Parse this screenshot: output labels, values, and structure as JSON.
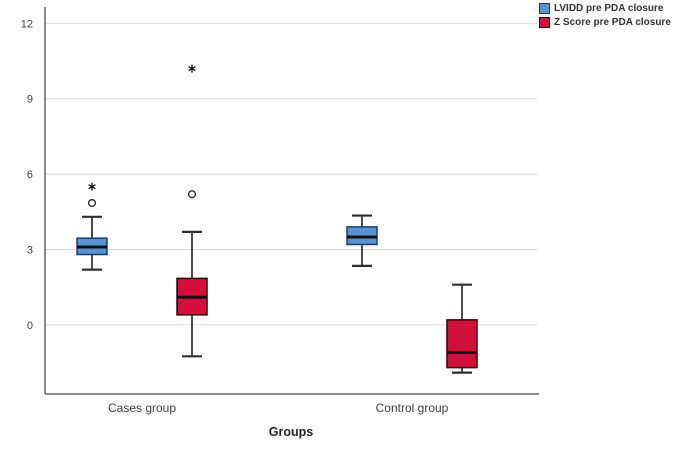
{
  "figure": {
    "kind": "clustered-boxplot",
    "background_color": "#ffffff",
    "gridline_color": "#d9d9d9",
    "axis_color": "#4a4a4a",
    "tick_label_color": "#3f3f3f",
    "median_color": "#111111",
    "whisker_color": "#2f2f2f"
  },
  "chart_data": {
    "type": "boxplot",
    "title": "",
    "xlabel": "Groups",
    "ylabel": "",
    "categories": [
      "Cases group",
      "Control group"
    ],
    "y_ticks": [
      0,
      3,
      6,
      9,
      12
    ],
    "ylim": [
      -2.75,
      12.65
    ],
    "grid": true,
    "legend_position": "top-right",
    "series": [
      {
        "name": "LVIDD pre PDA closure",
        "fill": "#5b92d2",
        "border": "#1c3c6e",
        "boxes": [
          {
            "category": "Cases group",
            "whisker_low": 2.2,
            "q1": 2.8,
            "median": 3.1,
            "q3": 3.45,
            "whisker_high": 4.3,
            "outliers": [
              {
                "value": 4.85,
                "type": "circle"
              },
              {
                "value": 5.5,
                "type": "star"
              }
            ]
          },
          {
            "category": "Control group",
            "whisker_low": 2.35,
            "q1": 3.2,
            "median": 3.5,
            "q3": 3.9,
            "whisker_high": 4.35,
            "outliers": []
          }
        ]
      },
      {
        "name": "Z Score pre PDA closure",
        "fill": "#d40f3c",
        "border": "#30000a",
        "boxes": [
          {
            "category": "Cases group",
            "whisker_low": -1.25,
            "q1": 0.4,
            "median": 1.1,
            "q3": 1.85,
            "whisker_high": 3.7,
            "outliers": [
              {
                "value": 5.2,
                "type": "circle"
              },
              {
                "value": 10.2,
                "type": "star"
              }
            ]
          },
          {
            "category": "Control group",
            "whisker_low": -1.9,
            "q1": -1.7,
            "median": -1.1,
            "q3": 0.2,
            "whisker_high": 1.6,
            "outliers": []
          }
        ]
      }
    ]
  }
}
